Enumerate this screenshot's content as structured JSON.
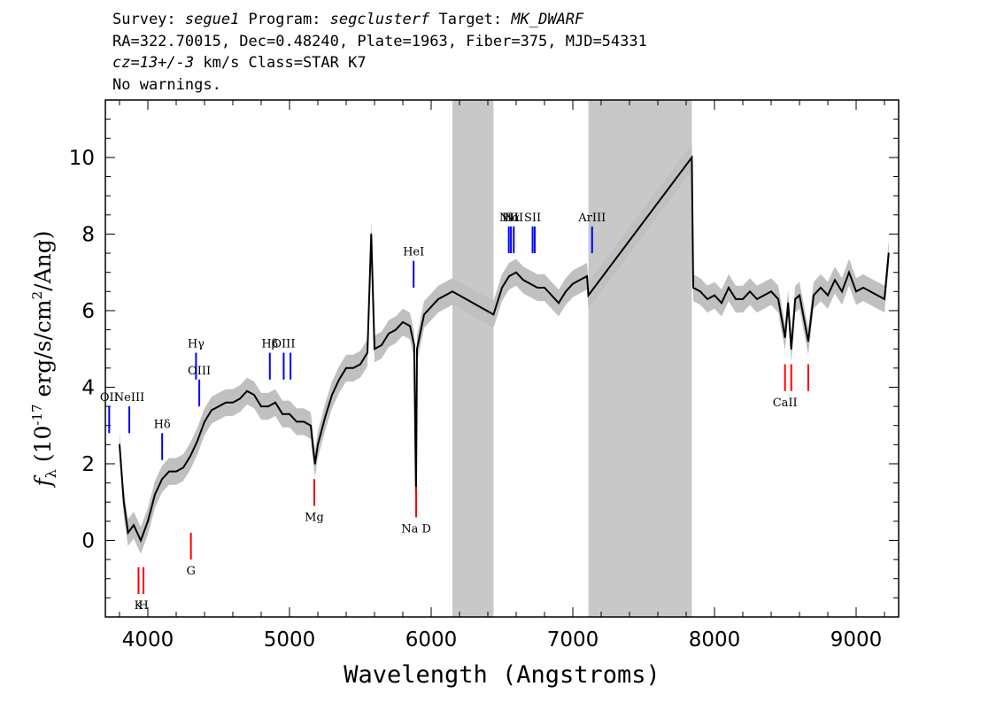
{
  "header": {
    "line1": {
      "survey_label": "Survey: ",
      "survey": "segue1",
      "program_label": " Program: ",
      "program": "segclusterf",
      "target_label": " Target: ",
      "target": "MK_DWARF"
    },
    "line2": "RA=322.70015, Dec=0.48240, Plate=1963, Fiber=375, MJD=54331",
    "line3": {
      "cz": "cz=13+/-3",
      "rest": " km/s Class=STAR K7"
    },
    "line4": "No warnings."
  },
  "chart_data": {
    "type": "line",
    "xlabel": "Wavelength (Angstroms)",
    "ylabel": "f_λ (10^-17 erg/s/cm^2/Ang)",
    "xlim": [
      3700,
      9300
    ],
    "ylim": [
      -2,
      11.5
    ],
    "xticks": [
      4000,
      5000,
      6000,
      7000,
      8000,
      9000
    ],
    "yticks": [
      0,
      2,
      4,
      6,
      8,
      10
    ],
    "grid": false,
    "masked_regions": [
      [
        6150,
        6440
      ],
      [
        7110,
        7840
      ]
    ],
    "colors": {
      "flux": "#000000",
      "error_band": "#c0c0c0",
      "mask": "#c8c8c8",
      "emission_line": "#0000ff",
      "absorption_line": "#ff0000"
    },
    "series": [
      {
        "x": [
          3800,
          3830,
          3860,
          3900,
          3950,
          4000,
          4050,
          4100,
          4150,
          4200,
          4250,
          4300,
          4350,
          4400,
          4450,
          4500,
          4550,
          4600,
          4650,
          4700,
          4750,
          4800,
          4850,
          4900,
          4950,
          5000,
          5050,
          5100,
          5150,
          5170,
          5180,
          5200,
          5250,
          5300,
          5350,
          5400,
          5450,
          5500,
          5550,
          5577,
          5600,
          5650,
          5700,
          5750,
          5800,
          5850,
          5880,
          5893,
          5900,
          5950,
          6000,
          6050,
          6100,
          6150,
          6440,
          6500,
          6550,
          6600,
          6650,
          6700,
          6750,
          6800,
          6850,
          6900,
          6950,
          7000,
          7050,
          7100,
          7110,
          7840,
          7850,
          7900,
          7950,
          8000,
          8050,
          8100,
          8150,
          8200,
          8250,
          8300,
          8350,
          8400,
          8450,
          8498,
          8520,
          8542,
          8570,
          8600,
          8662,
          8700,
          8750,
          8800,
          8850,
          8900,
          8950,
          9000,
          9050,
          9100,
          9150,
          9200,
          9230
        ],
        "y": [
          2.5,
          1.0,
          0.2,
          0.4,
          0.0,
          0.5,
          1.2,
          1.6,
          1.8,
          1.8,
          1.9,
          2.2,
          2.6,
          3.1,
          3.4,
          3.5,
          3.6,
          3.6,
          3.7,
          3.9,
          3.8,
          3.5,
          3.5,
          3.6,
          3.3,
          3.3,
          3.1,
          3.1,
          3.0,
          2.3,
          2.0,
          2.5,
          3.2,
          3.8,
          4.2,
          4.5,
          4.5,
          4.6,
          4.9,
          8.0,
          5.0,
          5.1,
          5.4,
          5.5,
          5.7,
          5.6,
          5.1,
          1.2,
          5.0,
          5.9,
          6.1,
          6.3,
          6.4,
          6.5,
          5.9,
          6.6,
          6.9,
          7.0,
          6.8,
          6.7,
          6.6,
          6.6,
          6.4,
          6.2,
          6.5,
          6.7,
          6.8,
          6.9,
          6.4,
          10.0,
          6.6,
          6.5,
          6.3,
          6.4,
          6.2,
          6.6,
          6.3,
          6.3,
          6.5,
          6.3,
          6.4,
          6.5,
          6.3,
          5.3,
          6.2,
          5.0,
          6.3,
          6.4,
          5.2,
          6.4,
          6.6,
          6.4,
          6.8,
          6.5,
          7.0,
          6.5,
          6.6,
          6.5,
          6.4,
          6.3,
          7.5
        ]
      }
    ],
    "line_markers": [
      {
        "label": "OII",
        "x": 3727,
        "y_top": 3.5,
        "y_bot": 2.8,
        "kind": "emission"
      },
      {
        "label": "NeIII",
        "x": 3869,
        "y_top": 3.5,
        "y_bot": 2.8,
        "kind": "emission"
      },
      {
        "label": "Hδ",
        "x": 4101,
        "y_top": 2.8,
        "y_bot": 2.1,
        "kind": "emission"
      },
      {
        "label": "Hγ",
        "x": 4340,
        "y_top": 4.9,
        "y_bot": 4.2,
        "kind": "emission"
      },
      {
        "label": "OIII",
        "x": 4363,
        "y_top": 4.2,
        "y_bot": 3.5,
        "kind": "emission"
      },
      {
        "label": "Hβ",
        "x": 4861,
        "y_top": 4.9,
        "y_bot": 4.2,
        "kind": "emission"
      },
      {
        "label": "OIII",
        "x": 4959,
        "y_top": 4.9,
        "y_bot": 4.2,
        "kind": "emission"
      },
      {
        "label": "",
        "x": 5007,
        "y_top": 4.9,
        "y_bot": 4.2,
        "kind": "emission"
      },
      {
        "label": "HeI",
        "x": 5876,
        "y_top": 7.3,
        "y_bot": 6.6,
        "kind": "emission"
      },
      {
        "label": "NII",
        "x": 6548,
        "y_top": 8.2,
        "y_bot": 7.5,
        "kind": "emission"
      },
      {
        "label": "Hα",
        "x": 6563,
        "y_top": 8.2,
        "y_bot": 7.5,
        "kind": "emission"
      },
      {
        "label": "NII",
        "x": 6583,
        "y_top": 8.2,
        "y_bot": 7.5,
        "kind": "emission"
      },
      {
        "label": "SII",
        "x": 6716,
        "y_top": 8.2,
        "y_bot": 7.5,
        "kind": "emission"
      },
      {
        "label": "",
        "x": 6731,
        "y_top": 8.2,
        "y_bot": 7.5,
        "kind": "emission"
      },
      {
        "label": "ArIII",
        "x": 7136,
        "y_top": 8.2,
        "y_bot": 7.5,
        "kind": "emission"
      },
      {
        "label": "K",
        "x": 3934,
        "y_top": -0.7,
        "y_bot": -1.4,
        "kind": "absorption"
      },
      {
        "label": "H",
        "x": 3969,
        "y_top": -0.7,
        "y_bot": -1.4,
        "kind": "absorption"
      },
      {
        "label": "G",
        "x": 4304,
        "y_top": 0.2,
        "y_bot": -0.5,
        "kind": "absorption"
      },
      {
        "label": "Mg",
        "x": 5175,
        "y_top": 1.6,
        "y_bot": 0.9,
        "kind": "absorption"
      },
      {
        "label": "Na D",
        "x": 5894,
        "y_top": 1.4,
        "y_bot": 0.6,
        "kind": "absorption"
      },
      {
        "label": "CaII",
        "x": 8498,
        "y_top": 4.6,
        "y_bot": 3.9,
        "kind": "absorption"
      },
      {
        "label": "",
        "x": 8542,
        "y_top": 4.6,
        "y_bot": 3.9,
        "kind": "absorption"
      },
      {
        "label": "",
        "x": 8662,
        "y_top": 4.6,
        "y_bot": 3.9,
        "kind": "absorption"
      }
    ]
  }
}
